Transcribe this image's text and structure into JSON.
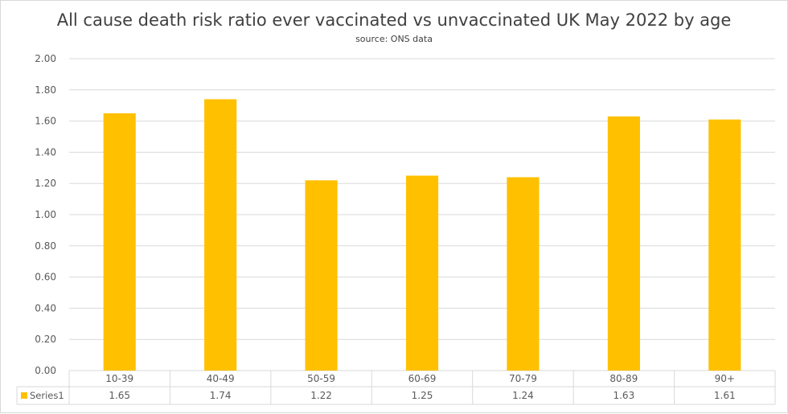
{
  "chart_data": {
    "type": "bar",
    "title": "All cause death risk ratio ever vaccinated vs unvaccinated UK May 2022 by age",
    "subtitle": "source: ONS data",
    "categories": [
      "10-39",
      "40-49",
      "50-59",
      "60-69",
      "70-79",
      "80-89",
      "90+"
    ],
    "series": [
      {
        "name": "Series1",
        "values": [
          1.65,
          1.74,
          1.22,
          1.25,
          1.24,
          1.63,
          1.61
        ],
        "color": "#FFC000"
      }
    ],
    "data_table": {
      "labels": [
        "1.65",
        "1.74",
        "1.22",
        "1.25",
        "1.24",
        "1.63",
        "1.61"
      ]
    },
    "y_ticks": [
      "0.00",
      "0.20",
      "0.40",
      "0.60",
      "0.80",
      "1.00",
      "1.20",
      "1.40",
      "1.60",
      "1.80",
      "2.00"
    ],
    "ylim": [
      0,
      2
    ],
    "grid": true,
    "legend": "data-table-key",
    "colors": {
      "bar": "#FFC000",
      "grid": "#d9d9d9",
      "text": "#595959",
      "title": "#404040"
    }
  }
}
